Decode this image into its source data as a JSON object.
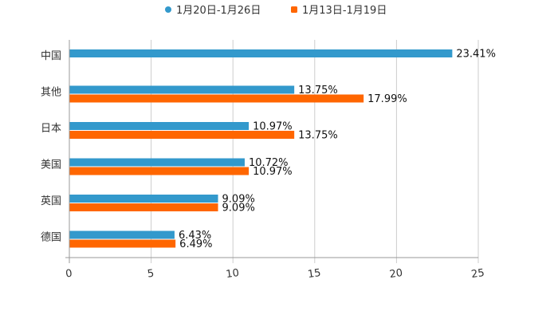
{
  "chart_data": {
    "type": "bar",
    "orientation": "horizontal",
    "categories": [
      "中国",
      "其他",
      "日本",
      "美国",
      "英国",
      "德国"
    ],
    "series": [
      {
        "name": "1月20日-1月26日",
        "color": "#3399cc",
        "values": [
          23.41,
          13.75,
          10.97,
          10.72,
          9.09,
          6.43
        ],
        "labels": [
          "23.41%",
          "13.75%",
          "10.97%",
          "10.72%",
          "9.09%",
          "6.43%"
        ]
      },
      {
        "name": "1月13日-1月19日",
        "color": "#ff6600",
        "values": [
          null,
          17.99,
          13.75,
          10.97,
          9.09,
          6.49
        ],
        "labels": [
          "",
          "17.99%",
          "13.75%",
          "10.97%",
          "9.09%",
          "6.49%"
        ]
      }
    ],
    "xlim": [
      0,
      25
    ],
    "xticks": [
      0,
      5,
      10,
      15,
      20,
      25
    ],
    "xtick_labels": [
      "0",
      "5",
      "10",
      "15",
      "20",
      "25"
    ],
    "grid": "vertical",
    "legend_position": "top-center"
  }
}
